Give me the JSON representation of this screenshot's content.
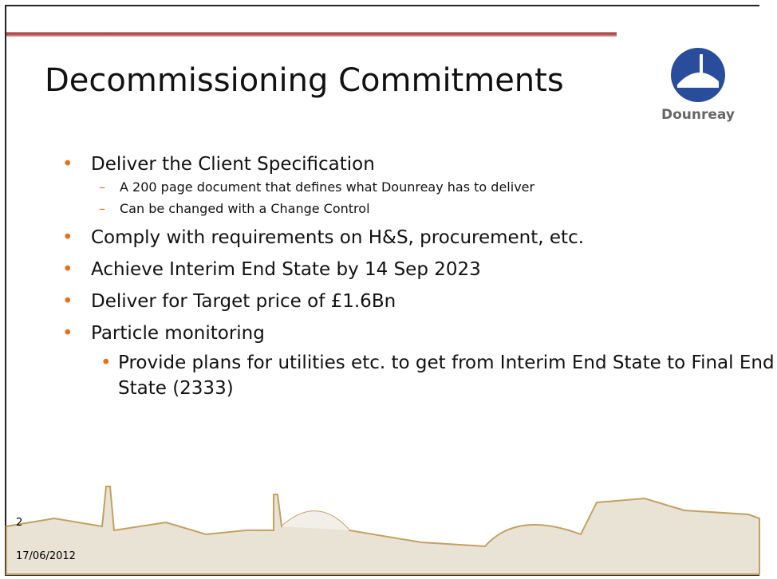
{
  "slide": {
    "title": "Decommissioning Commitments",
    "logo_text": "Dounreay",
    "bullets": [
      {
        "text": "Deliver the Client Specification",
        "sub": [
          "A 200 page document that defines what Dounreay has to deliver",
          "Can be changed with a Change Control"
        ]
      },
      {
        "text": "Comply with requirements on H&S, procurement, etc."
      },
      {
        "text": "Achieve Interim End State by 14 Sep 2023"
      },
      {
        "text": "Deliver for Target price of £1.6Bn"
      },
      {
        "text": "Particle monitoring",
        "sub2": [
          "Provide plans for utilities etc. to get from Interim End State to Final End State (2333)"
        ]
      }
    ],
    "page_number": "2",
    "date": "17/06/2012"
  }
}
